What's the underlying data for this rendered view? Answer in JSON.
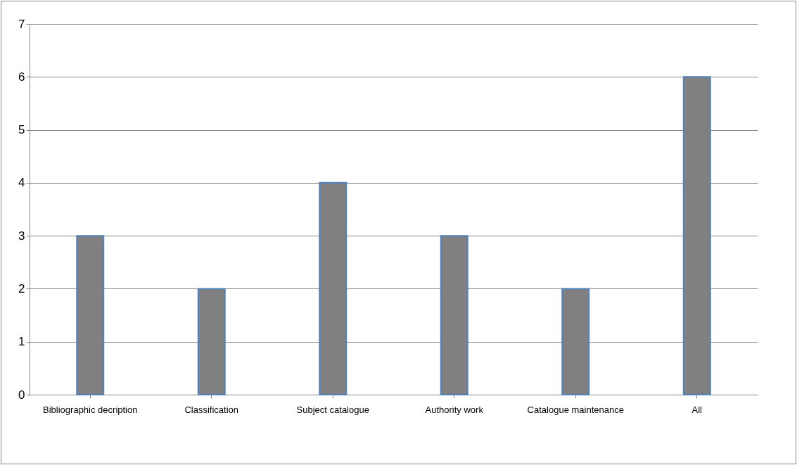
{
  "chart_data": {
    "type": "bar",
    "categories": [
      "Bibliographic decription",
      "Classification",
      "Subject catalogue",
      "Authority work",
      "Catalogue maintenance",
      "All"
    ],
    "values": [
      3,
      2,
      4,
      3,
      2,
      6
    ],
    "color": "#808080",
    "ylim": [
      0,
      7
    ],
    "yticks": [
      0,
      1,
      2,
      3,
      4,
      5,
      6,
      7
    ],
    "grid": "y"
  }
}
